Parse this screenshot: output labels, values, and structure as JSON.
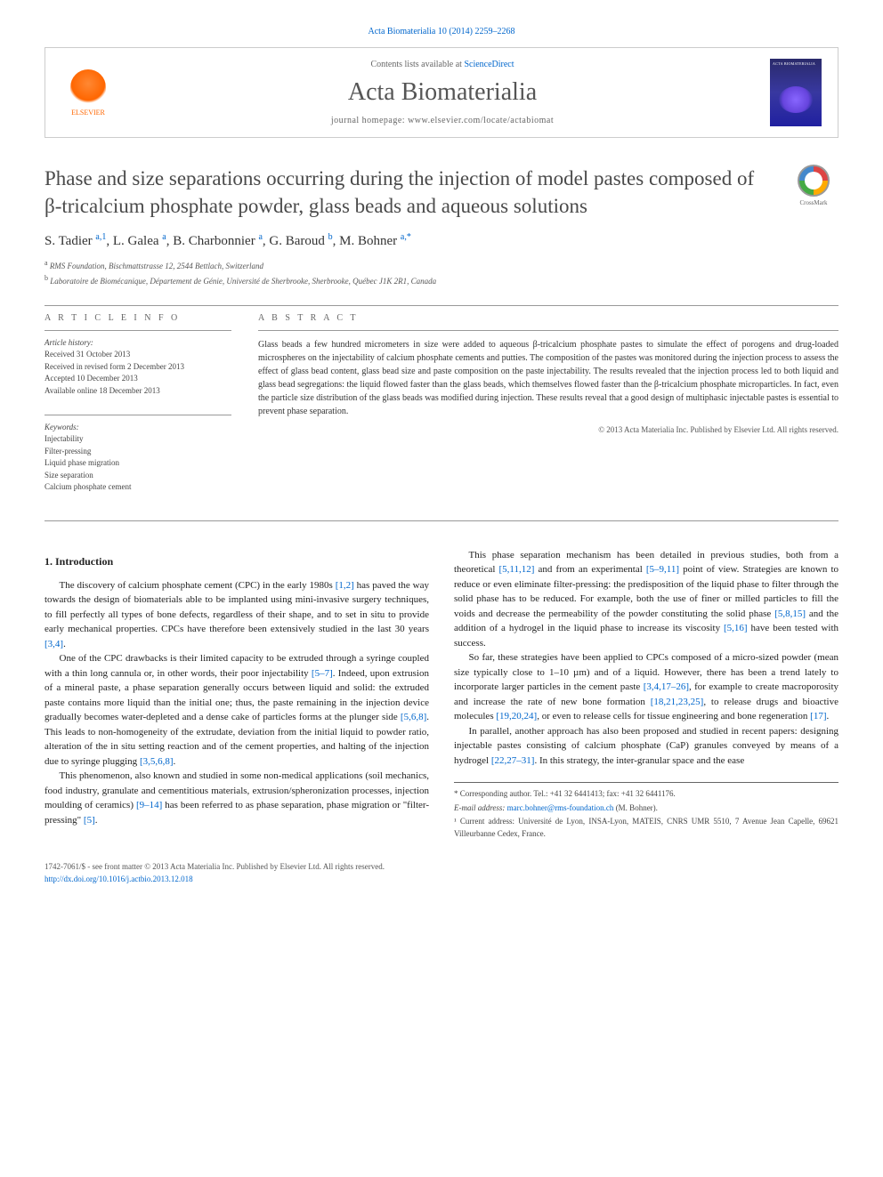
{
  "header": {
    "journal_ref": "Acta Biomaterialia 10 (2014) 2259–2268",
    "contents_prefix": "Contents lists available at ",
    "contents_link": "ScienceDirect",
    "journal_name": "Acta Biomaterialia",
    "homepage_prefix": "journal homepage: ",
    "homepage": "www.elsevier.com/locate/actabiomat",
    "publisher_logo_label": "ELSEVIER",
    "crossmark_label": "CrossMark"
  },
  "article": {
    "title": "Phase and size separations occurring during the injection of model pastes composed of β-tricalcium phosphate powder, glass beads and aqueous solutions",
    "authors_html": "S. Tadier <sup>a,1</sup>, L. Galea <sup>a</sup>, B. Charbonnier <sup>a</sup>, G. Baroud <sup>b</sup>, M. Bohner <sup>a,*</sup>",
    "affiliations": [
      {
        "sup": "a",
        "text": "RMS Foundation, Bischmattstrasse 12, 2544 Bettlach, Switzerland"
      },
      {
        "sup": "b",
        "text": "Laboratoire de Biomécanique, Département de Génie, Université de Sherbrooke, Sherbrooke, Québec J1K 2R1, Canada"
      }
    ]
  },
  "info": {
    "heading": "A R T I C L E   I N F O",
    "history_label": "Article history:",
    "history": [
      "Received 31 October 2013",
      "Received in revised form 2 December 2013",
      "Accepted 10 December 2013",
      "Available online 18 December 2013"
    ],
    "keywords_label": "Keywords:",
    "keywords": [
      "Injectability",
      "Filter-pressing",
      "Liquid phase migration",
      "Size separation",
      "Calcium phosphate cement"
    ]
  },
  "abstract": {
    "heading": "A B S T R A C T",
    "text": "Glass beads a few hundred micrometers in size were added to aqueous β-tricalcium phosphate pastes to simulate the effect of porogens and drug-loaded microspheres on the injectability of calcium phosphate cements and putties. The composition of the pastes was monitored during the injection process to assess the effect of glass bead content, glass bead size and paste composition on the paste injectability. The results revealed that the injection process led to both liquid and glass bead segregations: the liquid flowed faster than the glass beads, which themselves flowed faster than the β-tricalcium phosphate microparticles. In fact, even the particle size distribution of the glass beads was modified during injection. These results reveal that a good design of multiphasic injectable pastes is essential to prevent phase separation.",
    "copyright": "© 2013 Acta Materialia Inc. Published by Elsevier Ltd. All rights reserved."
  },
  "body": {
    "section_heading": "1. Introduction",
    "paragraphs": [
      "The discovery of calcium phosphate cement (CPC) in the early 1980s <a href='#'>[1,2]</a> has paved the way towards the design of biomaterials able to be implanted using mini-invasive surgery techniques, to fill perfectly all types of bone defects, regardless of their shape, and to set in situ to provide early mechanical properties. CPCs have therefore been extensively studied in the last 30 years <a href='#'>[3,4]</a>.",
      "One of the CPC drawbacks is their limited capacity to be extruded through a syringe coupled with a thin long cannula or, in other words, their poor injectability <a href='#'>[5–7]</a>. Indeed, upon extrusion of a mineral paste, a phase separation generally occurs between liquid and solid: the extruded paste contains more liquid than the initial one; thus, the paste remaining in the injection device gradually becomes water-depleted and a dense cake of particles forms at the plunger side <a href='#'>[5,6,8]</a>. This leads to non-homogeneity of the extrudate, deviation from the initial liquid to powder ratio, alteration of the in situ setting reaction and of the cement properties, and halting of the injection due to syringe plugging <a href='#'>[3,5,6,8]</a>.",
      "This phenomenon, also known and studied in some non-medical applications (soil mechanics, food industry, granulate and cementitious materials, extrusion/spheronization processes, injection moulding of ceramics) <a href='#'>[9–14]</a> has been referred to as phase separation, phase migration or \"filter-pressing\" <a href='#'>[5]</a>.",
      "This phase separation mechanism has been detailed in previous studies, both from a theoretical <a href='#'>[5,11,12]</a> and from an experimental <a href='#'>[5–9,11]</a> point of view. Strategies are known to reduce or even eliminate filter-pressing: the predisposition of the liquid phase to filter through the solid phase has to be reduced. For example, both the use of finer or milled particles to fill the voids and decrease the permeability of the powder constituting the solid phase <a href='#'>[5,8,15]</a> and the addition of a hydrogel in the liquid phase to increase its viscosity <a href='#'>[5,16]</a> have been tested with success.",
      "So far, these strategies have been applied to CPCs composed of a micro-sized powder (mean size typically close to 1–10 µm) and of a liquid. However, there has been a trend lately to incorporate larger particles in the cement paste <a href='#'>[3,4,17–26]</a>, for example to create macroporosity and increase the rate of new bone formation <a href='#'>[18,21,23,25]</a>, to release drugs and bioactive molecules <a href='#'>[19,20,24]</a>, or even to release cells for tissue engineering and bone regeneration <a href='#'>[17]</a>.",
      "In parallel, another approach has also been proposed and studied in recent papers: designing injectable pastes consisting of calcium phosphate (CaP) granules conveyed by means of a hydrogel <a href='#'>[22,27–31]</a>. In this strategy, the inter-granular space and the ease"
    ]
  },
  "footnotes": {
    "corr_label": "* Corresponding author. Tel.: +41 32 6441413; fax: +41 32 6441176.",
    "email_label": "E-mail address:",
    "email": "marc.bohner@rms-foundation.ch",
    "email_suffix": "(M. Bohner).",
    "note1": "¹ Current address: Université de Lyon, INSA-Lyon, MATEIS, CNRS UMR 5510, 7 Avenue Jean Capelle, 69621 Villeurbanne Cedex, France."
  },
  "footer": {
    "issn": "1742-7061/$ - see front matter © 2013 Acta Materialia Inc. Published by Elsevier Ltd. All rights reserved.",
    "doi": "http://dx.doi.org/10.1016/j.actbio.2013.12.018"
  },
  "colors": {
    "link": "#0066cc",
    "text": "#333333",
    "heading_gray": "#666666",
    "elsevier_orange": "#ff6600"
  }
}
